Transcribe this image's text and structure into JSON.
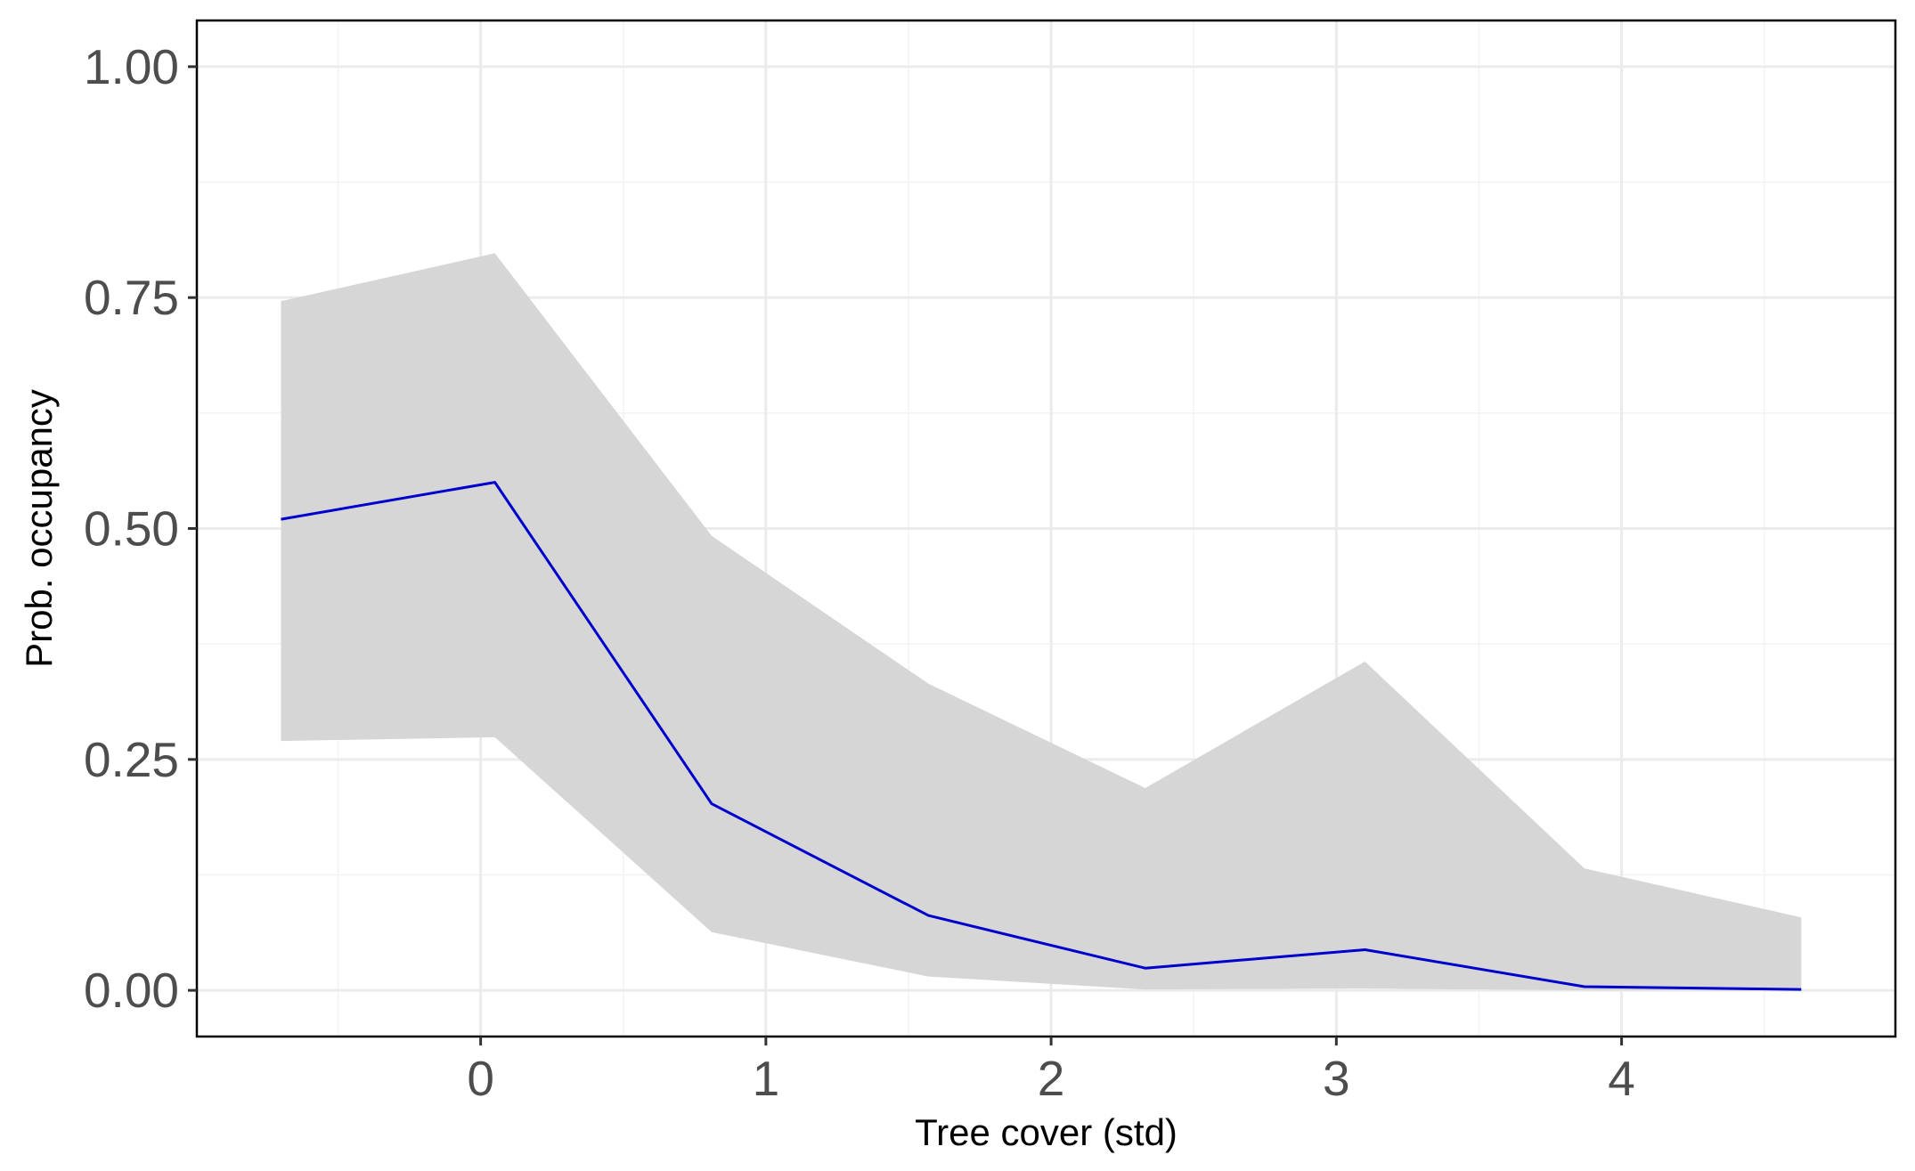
{
  "chart_data": {
    "type": "line",
    "xlabel": "Tree cover (std)",
    "ylabel": "Prob. occupancy",
    "xlim": [
      -0.995,
      4.96
    ],
    "ylim": [
      -0.05,
      1.05
    ],
    "x_ticks": [
      0,
      1,
      2,
      3,
      4
    ],
    "x_tick_labels": [
      "0",
      "1",
      "2",
      "3",
      "4"
    ],
    "y_ticks": [
      0,
      0.25,
      0.5,
      0.75,
      1.0
    ],
    "y_tick_labels": [
      "0.00",
      "0.25",
      "0.50",
      "0.75",
      "1.00"
    ],
    "grid": true,
    "series": [
      {
        "x": [
          -0.7,
          0.05,
          0.81,
          1.57,
          2.33,
          3.1,
          3.87,
          4.63
        ],
        "values": [
          0.51,
          0.55,
          0.202,
          0.081,
          0.024,
          0.044,
          0.004,
          0.001
        ],
        "lower": [
          0.27,
          0.274,
          0.063,
          0.015,
          0.001,
          0.002,
          0.0,
          0.0
        ],
        "upper": [
          0.746,
          0.798,
          0.492,
          0.332,
          0.219,
          0.356,
          0.132,
          0.079
        ],
        "color": "#0000CC"
      }
    ],
    "ribbon_color": "#D6D6D6",
    "grid_major_color": "#EBEBEB",
    "grid_minor_color": "#F3F3F3",
    "panel_border_color": "#000000"
  }
}
